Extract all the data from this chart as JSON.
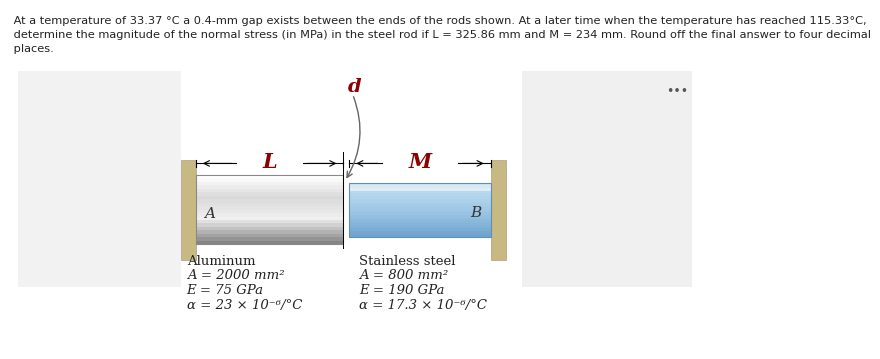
{
  "title_line1": " At a temperature of 33.37 °C a 0.4-mm gap exists between the ends of the rods shown. At a later time when the temperature has reached 115.33°C,",
  "title_line2": " determine the magnitude of the normal stress (in MPa) in the steel rod if L = 325.86 mm and M = 234 mm. Round off the final answer to four decimal",
  "title_line3": " places.",
  "label_d": "d",
  "label_L": "L",
  "label_M": "M",
  "label_A": "A",
  "label_B": "B",
  "label_dots": "•••",
  "alum_title": "Aluminum",
  "alum_A": "A = 2000 mm²",
  "alum_E": "E = 75 GPa",
  "alum_alpha": "α = 23 × 10⁻⁶/°C",
  "steel_title": "Stainless steel",
  "steel_A": "A = 800 mm²",
  "steel_E": "E = 190 GPa",
  "steel_alpha": "α = 17.3 × 10⁻⁶/°C",
  "wall_color": "#c8b882",
  "text_color": "#222222",
  "red_label_color": "#8b0000",
  "panel_bg": "#f2f2f2",
  "right_panel_bg": "#f0f0f0"
}
